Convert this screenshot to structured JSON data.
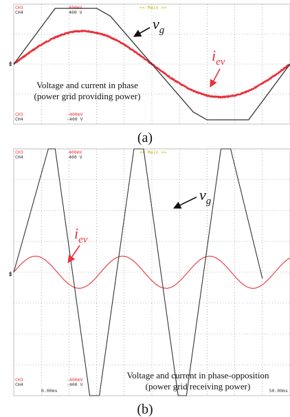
{
  "colors": {
    "voltage": "#333333",
    "current": "#e8323c",
    "grid": "#7a7a7a",
    "header_red": "#e8323c",
    "header_yellow": "#c8b400"
  },
  "chart_data": [
    {
      "type": "line",
      "panel_label": "(a)",
      "header": {
        "ch3": "CH3",
        "ch4": "CH4",
        "ch3_top": "400mV",
        "ch4_top": "400 V",
        "ch3_bottom": "-400mV",
        "ch4_bottom": "-400 V",
        "timebase": "<< Main >>"
      },
      "time_start": "",
      "time_end": "",
      "annotation_line1": "Voltage and current in phase",
      "annotation_line2": "(power grid providing power)",
      "series": [
        {
          "label_base": "v",
          "label_sub": "g",
          "color": "voltage",
          "points": [
            [
              0,
              0.0
            ],
            [
              0.15,
              0.93
            ],
            [
              0.3,
              0.93
            ],
            [
              0.35,
              0.8
            ],
            [
              0.65,
              -0.8
            ],
            [
              0.7,
              -0.93
            ],
            [
              0.85,
              -0.93
            ],
            [
              1.0,
              0.0
            ]
          ]
        },
        {
          "label_base": "i",
          "label_sub": "ev",
          "color": "current",
          "amplitude": 0.55,
          "period": 1.0,
          "phase": 0.0
        }
      ],
      "xlim": [
        0,
        1
      ],
      "ylim": [
        -1,
        1
      ],
      "grid": true
    },
    {
      "type": "line",
      "panel_label": "(b)",
      "header": {
        "ch3": "CH3",
        "ch4": "CH4",
        "ch3_top": "400mV",
        "ch4_top": "400 V",
        "ch3_bottom": "-400mV",
        "ch4_bottom": "-400 V",
        "timebase": "<< Main >>"
      },
      "time_start": "0.00ms",
      "time_end": "50.00ms",
      "annotation_line1": "Voltage and current in phase-opposition",
      "annotation_line2": "(power grid receiving power)",
      "series": [
        {
          "label_base": "v",
          "label_sub": "g",
          "color": "voltage",
          "points": [
            [
              0,
              0.0
            ],
            [
              0.125,
              1.0
            ],
            [
              0.15,
              1.0
            ],
            [
              0.275,
              -1.0
            ],
            [
              0.31,
              -1.0
            ],
            [
              0.435,
              1.0
            ],
            [
              0.47,
              1.0
            ],
            [
              0.595,
              -1.0
            ],
            [
              0.625,
              -1.0
            ],
            [
              0.75,
              1.0
            ],
            [
              0.785,
              1.0
            ],
            [
              0.9,
              -0.05
            ]
          ]
        },
        {
          "label_base": "i",
          "label_sub": "ev",
          "color": "current",
          "amplitude": 0.13,
          "period": 0.315,
          "phase": 0.0
        }
      ],
      "xlim": [
        0,
        1
      ],
      "ylim": [
        -1,
        1
      ],
      "grid": true
    }
  ]
}
